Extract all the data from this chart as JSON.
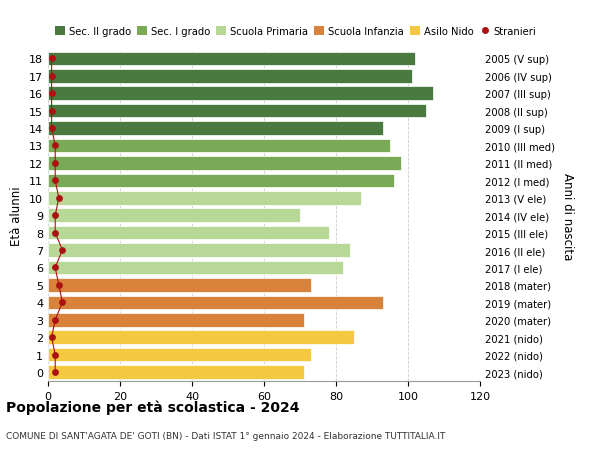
{
  "ages": [
    18,
    17,
    16,
    15,
    14,
    13,
    12,
    11,
    10,
    9,
    8,
    7,
    6,
    5,
    4,
    3,
    2,
    1,
    0
  ],
  "right_labels": [
    "2005 (V sup)",
    "2006 (IV sup)",
    "2007 (III sup)",
    "2008 (II sup)",
    "2009 (I sup)",
    "2010 (III med)",
    "2011 (II med)",
    "2012 (I med)",
    "2013 (V ele)",
    "2014 (IV ele)",
    "2015 (III ele)",
    "2016 (II ele)",
    "2017 (I ele)",
    "2018 (mater)",
    "2019 (mater)",
    "2020 (mater)",
    "2021 (nido)",
    "2022 (nido)",
    "2023 (nido)"
  ],
  "bar_values": [
    102,
    101,
    107,
    105,
    93,
    95,
    98,
    96,
    87,
    70,
    78,
    84,
    82,
    73,
    93,
    71,
    85,
    73,
    71
  ],
  "bar_colors": [
    "#4a7a40",
    "#4a7a40",
    "#4a7a40",
    "#4a7a40",
    "#4a7a40",
    "#7aaa56",
    "#7aaa56",
    "#7aaa56",
    "#b8d898",
    "#b8d898",
    "#b8d898",
    "#b8d898",
    "#b8d898",
    "#d9823b",
    "#d9823b",
    "#d9823b",
    "#f5c842",
    "#f5c842",
    "#f5c842"
  ],
  "stranieri_values": [
    1,
    1,
    1,
    1,
    1,
    2,
    2,
    2,
    3,
    2,
    2,
    4,
    2,
    3,
    4,
    2,
    1,
    2,
    2
  ],
  "xlim": [
    0,
    120
  ],
  "xticks": [
    0,
    20,
    40,
    60,
    80,
    100,
    120
  ],
  "ylabel": "Età alunni",
  "right_ylabel": "Anni di nascita",
  "title": "Popolazione per età scolastica - 2024",
  "subtitle": "COMUNE DI SANT'AGATA DE' GOTI (BN) - Dati ISTAT 1° gennaio 2024 - Elaborazione TUTTITALIA.IT",
  "legend_items": [
    {
      "label": "Sec. II grado",
      "color": "#4a7a40"
    },
    {
      "label": "Sec. I grado",
      "color": "#7aaa56"
    },
    {
      "label": "Scuola Primaria",
      "color": "#b8d898"
    },
    {
      "label": "Scuola Infanzia",
      "color": "#d9823b"
    },
    {
      "label": "Asilo Nido",
      "color": "#f5c842"
    },
    {
      "label": "Stranieri",
      "color": "#aa1111"
    }
  ],
  "bar_height": 0.78,
  "background_color": "#ffffff",
  "grid_color": "#cccccc"
}
